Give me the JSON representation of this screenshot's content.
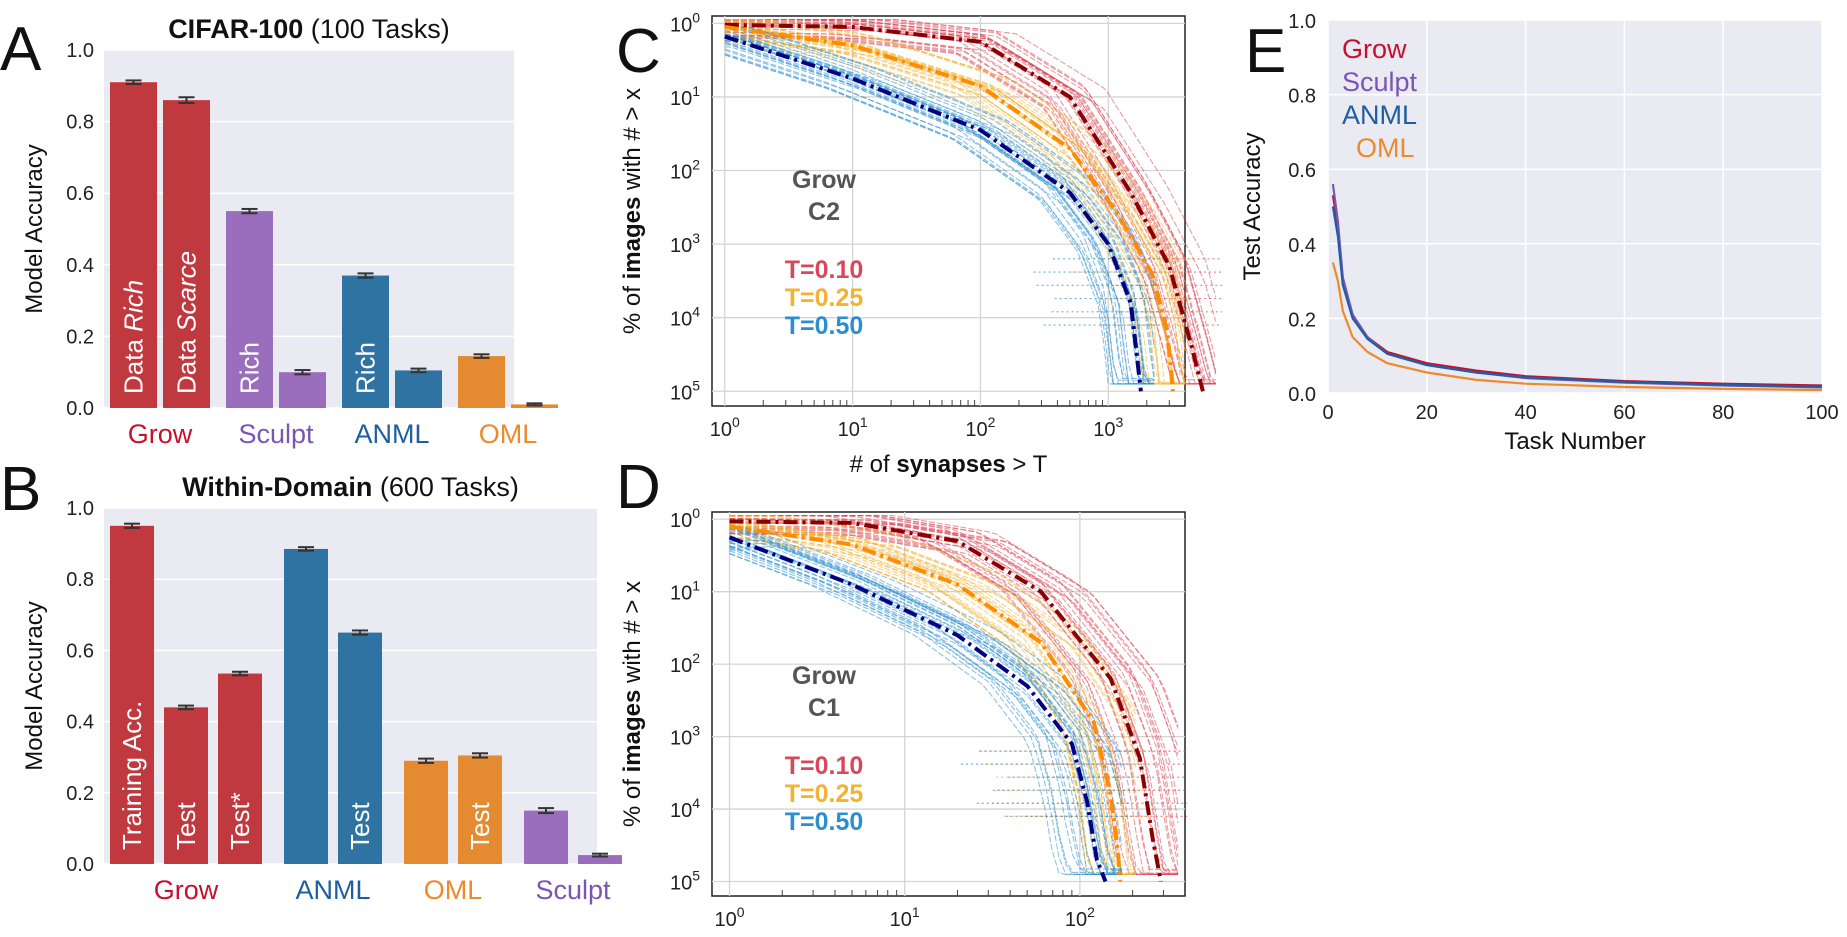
{
  "panel_letters": {
    "a": "A",
    "b": "B",
    "c": "C",
    "d": "D",
    "e": "E"
  },
  "colors": {
    "grow": "#c0393f",
    "sculpt": "#9a6ebd",
    "anml": "#2f73a2",
    "oml": "#e48a30",
    "grow_text": "#c8102e",
    "sculpt_text": "#7b55b3",
    "anml_text": "#1d5fa0",
    "oml_text": "#ec8a2c",
    "t010": "#d9485a",
    "t025": "#f2b233",
    "t050": "#2b8fcf",
    "dark_red": "#8b0000",
    "dark_orange": "#ff8c00",
    "navy": "#000080",
    "plot_bg": "#eaeaf2",
    "gray_text": "#555555"
  },
  "chart_data": [
    {
      "id": "A",
      "type": "bar",
      "title_bold": "CIFAR-100",
      "title_rest": " (100 Tasks)",
      "ylabel": "Model Accuracy",
      "ylim": [
        0,
        1.0
      ],
      "yticks": [
        "0.0",
        "0.2",
        "0.4",
        "0.6",
        "0.8",
        "1.0"
      ],
      "bars": [
        {
          "value": 0.91,
          "err": 0.005,
          "group": "grow",
          "label": "Data ",
          "label_it": "Rich"
        },
        {
          "value": 0.86,
          "err": 0.008,
          "group": "grow",
          "label": "Data ",
          "label_it": "Scarce"
        },
        {
          "value": 0.55,
          "err": 0.006,
          "group": "sculpt",
          "label": "Rich",
          "label_it": ""
        },
        {
          "value": 0.1,
          "err": 0.006,
          "group": "sculpt",
          "label": "",
          "label_it": ""
        },
        {
          "value": 0.37,
          "err": 0.006,
          "group": "anml",
          "label": "Rich",
          "label_it": ""
        },
        {
          "value": 0.105,
          "err": 0.005,
          "group": "anml",
          "label": "",
          "label_it": ""
        },
        {
          "value": 0.145,
          "err": 0.005,
          "group": "oml",
          "label": "",
          "label_it": ""
        },
        {
          "value": 0.01,
          "err": 0.003,
          "group": "oml",
          "label": "",
          "label_it": ""
        }
      ],
      "categories": [
        "Grow",
        "Sculpt",
        "ANML",
        "OML"
      ]
    },
    {
      "id": "B",
      "type": "bar",
      "title_bold": "Within-Domain",
      "title_rest": " (600 Tasks)",
      "ylabel": "Model Accuracy",
      "ylim": [
        0,
        1.0
      ],
      "yticks": [
        "0.0",
        "0.2",
        "0.4",
        "0.6",
        "0.8",
        "1.0"
      ],
      "bars": [
        {
          "value": 0.95,
          "err": 0.006,
          "group": "grow",
          "label": "Training Acc.",
          "label_it": ""
        },
        {
          "value": 0.44,
          "err": 0.005,
          "group": "grow",
          "label": "Test",
          "label_it": ""
        },
        {
          "value": 0.535,
          "err": 0.005,
          "group": "grow",
          "label": "Test*",
          "label_it": ""
        },
        {
          "value": 0.885,
          "err": 0.005,
          "group": "anml",
          "label": "",
          "label_it": ""
        },
        {
          "value": 0.65,
          "err": 0.006,
          "group": "anml",
          "label": "Test",
          "label_it": ""
        },
        {
          "value": 0.29,
          "err": 0.006,
          "group": "oml",
          "label": "",
          "label_it": ""
        },
        {
          "value": 0.305,
          "err": 0.006,
          "group": "oml",
          "label": "Test",
          "label_it": ""
        },
        {
          "value": 0.15,
          "err": 0.007,
          "group": "sculpt",
          "label": "",
          "label_it": ""
        },
        {
          "value": 0.025,
          "err": 0.004,
          "group": "sculpt",
          "label": "",
          "label_it": ""
        }
      ],
      "categories": [
        "Grow",
        "ANML",
        "OML",
        "Sculpt"
      ]
    },
    {
      "id": "C",
      "type": "line",
      "scale": "log-log",
      "ylabel_pre": "% of ",
      "ylabel_bold": "images",
      "ylabel_post": " with # > x",
      "xlabel_pre": "# of ",
      "xlabel_bold": "synapses",
      "xlabel_post": " > T",
      "xticks": [
        {
          "base": "10",
          "exp": "0"
        },
        {
          "base": "10",
          "exp": "1"
        },
        {
          "base": "10",
          "exp": "2"
        },
        {
          "base": "10",
          "exp": "3"
        }
      ],
      "yticks": [
        {
          "base": "10",
          "exp": "0"
        },
        {
          "base": "10",
          "exp": "1"
        },
        {
          "base": "10",
          "exp": "2"
        },
        {
          "base": "10",
          "exp": "3"
        },
        {
          "base": "10",
          "exp": "4"
        },
        {
          "base": "10",
          "exp": "5"
        }
      ],
      "inset_title": [
        "Grow",
        "C2"
      ],
      "series": [
        {
          "name": "T=0.10",
          "mean_color": "dark_red",
          "band_color": "t010",
          "points": [
            [
              1,
              0.02
            ],
            [
              10,
              0.05
            ],
            [
              100,
              0.25
            ],
            [
              500,
              1.0
            ],
            [
              1500,
              2.3
            ],
            [
              3000,
              3.3
            ],
            [
              4500,
              4.4
            ],
            [
              5500,
              5.0
            ]
          ]
        },
        {
          "name": "T=0.25",
          "mean_color": "dark_orange",
          "band_color": "t025",
          "points": [
            [
              1,
              0.05
            ],
            [
              10,
              0.3
            ],
            [
              100,
              0.85
            ],
            [
              500,
              1.7
            ],
            [
              1200,
              2.6
            ],
            [
              2200,
              3.4
            ],
            [
              2900,
              4.2
            ],
            [
              3200,
              5.0
            ]
          ]
        },
        {
          "name": "T=0.50",
          "mean_color": "navy",
          "band_color": "t050",
          "points": [
            [
              1,
              0.18
            ],
            [
              10,
              0.75
            ],
            [
              100,
              1.45
            ],
            [
              500,
              2.3
            ],
            [
              1000,
              3.0
            ],
            [
              1500,
              3.8
            ],
            [
              1800,
              5.0
            ]
          ]
        }
      ]
    },
    {
      "id": "D",
      "type": "line",
      "scale": "log-log",
      "ylabel_pre": "% of ",
      "ylabel_bold": "images",
      "ylabel_post": " with # > x",
      "xticks": [
        {
          "base": "10",
          "exp": "0"
        },
        {
          "base": "10",
          "exp": "1"
        },
        {
          "base": "10",
          "exp": "2"
        }
      ],
      "yticks": [
        {
          "base": "10",
          "exp": "0"
        },
        {
          "base": "10",
          "exp": "1"
        },
        {
          "base": "10",
          "exp": "2"
        },
        {
          "base": "10",
          "exp": "3"
        },
        {
          "base": "10",
          "exp": "4"
        },
        {
          "base": "10",
          "exp": "5"
        }
      ],
      "inset_title": [
        "Grow",
        "C1"
      ],
      "series": [
        {
          "name": "T=0.10",
          "mean_color": "dark_red",
          "band_color": "t010",
          "points": [
            [
              1,
              0.03
            ],
            [
              5,
              0.05
            ],
            [
              20,
              0.3
            ],
            [
              60,
              1.0
            ],
            [
              150,
              2.2
            ],
            [
              220,
              3.3
            ],
            [
              260,
              4.4
            ],
            [
              290,
              5.0
            ]
          ]
        },
        {
          "name": "T=0.25",
          "mean_color": "dark_orange",
          "band_color": "t025",
          "points": [
            [
              1,
              0.1
            ],
            [
              5,
              0.35
            ],
            [
              20,
              0.9
            ],
            [
              60,
              1.7
            ],
            [
              120,
              2.8
            ],
            [
              150,
              3.8
            ],
            [
              165,
              4.6
            ],
            [
              170,
              5.0
            ]
          ]
        },
        {
          "name": "T=0.50",
          "mean_color": "navy",
          "band_color": "t050",
          "points": [
            [
              1,
              0.25
            ],
            [
              5,
              0.9
            ],
            [
              20,
              1.6
            ],
            [
              50,
              2.3
            ],
            [
              90,
              3.1
            ],
            [
              110,
              3.9
            ],
            [
              125,
              4.7
            ],
            [
              140,
              5.0
            ]
          ]
        }
      ]
    },
    {
      "id": "E",
      "type": "line",
      "ylabel": "Test Accuracy",
      "xlabel": "Task Number",
      "xlim": [
        0,
        100
      ],
      "ylim": [
        0,
        1.0
      ],
      "xticks": [
        "0",
        "20",
        "40",
        "60",
        "80",
        "100"
      ],
      "yticks": [
        "0.0",
        "0.2",
        "0.4",
        "0.6",
        "0.8",
        "1.0"
      ],
      "legend": [
        "Grow",
        "Sculpt",
        "ANML",
        "OML"
      ],
      "series": [
        {
          "name": "Grow",
          "color": "grow_text",
          "x": [
            1,
            2,
            3,
            5,
            8,
            12,
            20,
            30,
            40,
            60,
            80,
            100
          ],
          "y": [
            0.53,
            0.45,
            0.3,
            0.2,
            0.15,
            0.11,
            0.08,
            0.06,
            0.045,
            0.032,
            0.025,
            0.02
          ]
        },
        {
          "name": "Sculpt",
          "color": "sculpt_text",
          "x": [
            1,
            2,
            3,
            5,
            8,
            12,
            20,
            30,
            40,
            60,
            80,
            100
          ],
          "y": [
            0.56,
            0.46,
            0.31,
            0.21,
            0.15,
            0.105,
            0.075,
            0.055,
            0.04,
            0.028,
            0.02,
            0.015
          ]
        },
        {
          "name": "ANML",
          "color": "anml_text",
          "x": [
            1,
            2,
            3,
            5,
            8,
            12,
            20,
            30,
            40,
            60,
            80,
            100
          ],
          "y": [
            0.5,
            0.42,
            0.29,
            0.2,
            0.145,
            0.105,
            0.075,
            0.055,
            0.042,
            0.03,
            0.022,
            0.017
          ]
        },
        {
          "name": "OML",
          "color": "oml_text",
          "x": [
            1,
            2,
            3,
            5,
            8,
            12,
            20,
            30,
            40,
            60,
            80,
            100
          ],
          "y": [
            0.35,
            0.3,
            0.22,
            0.15,
            0.11,
            0.08,
            0.055,
            0.035,
            0.025,
            0.016,
            0.011,
            0.008
          ]
        }
      ]
    }
  ]
}
